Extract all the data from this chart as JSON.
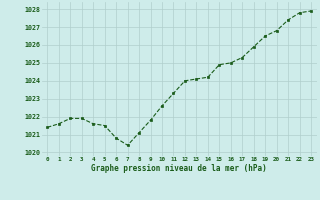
{
  "x": [
    0,
    1,
    2,
    3,
    4,
    5,
    6,
    7,
    8,
    9,
    10,
    11,
    12,
    13,
    14,
    15,
    16,
    17,
    18,
    19,
    20,
    21,
    22,
    23
  ],
  "y": [
    1021.4,
    1021.6,
    1021.9,
    1021.9,
    1021.6,
    1021.5,
    1020.8,
    1020.4,
    1021.1,
    1021.8,
    1022.6,
    1023.3,
    1024.0,
    1024.1,
    1024.2,
    1024.9,
    1025.0,
    1025.3,
    1025.9,
    1026.5,
    1026.8,
    1027.4,
    1027.8,
    1027.9
  ],
  "line_color": "#1a5c1a",
  "marker_color": "#1a5c1a",
  "bg_color": "#ceecea",
  "grid_color": "#b0cfcc",
  "xlabel": "Graphe pression niveau de la mer (hPa)",
  "xlabel_color": "#1a5c1a",
  "tick_color": "#1a5c1a",
  "ylim": [
    1019.8,
    1028.4
  ],
  "yticks": [
    1020,
    1021,
    1022,
    1023,
    1024,
    1025,
    1026,
    1027,
    1028
  ],
  "xtick_labels": [
    "0",
    "1",
    "2",
    "3",
    "4",
    "5",
    "6",
    "7",
    "8",
    "9",
    "10",
    "11",
    "12",
    "13",
    "14",
    "15",
    "16",
    "17",
    "18",
    "19",
    "20",
    "21",
    "22",
    "23"
  ]
}
